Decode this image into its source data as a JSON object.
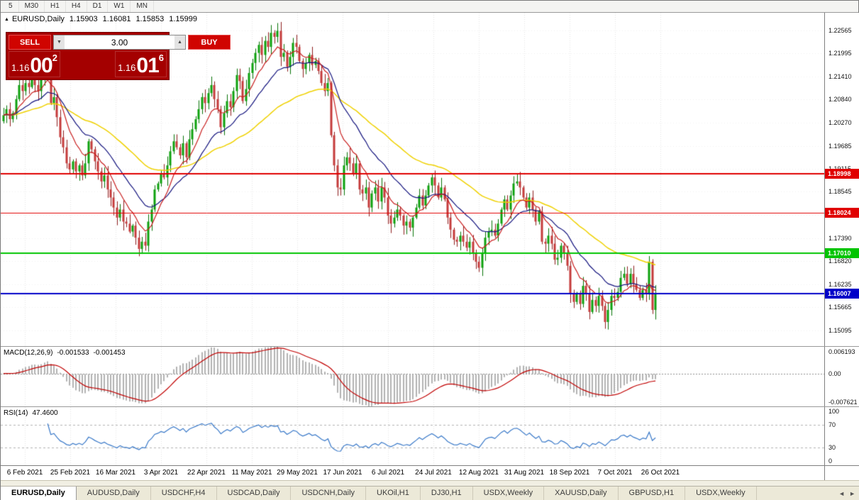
{
  "toolbar": {
    "timeframes": [
      "5",
      "M30",
      "H1",
      "H4",
      "D1",
      "W1",
      "MN"
    ]
  },
  "symbol_line": {
    "symbol": "EURUSD,Daily",
    "open": "1.15903",
    "high": "1.16081",
    "low": "1.15853",
    "close": "1.15999"
  },
  "trade": {
    "sell_label": "SELL",
    "buy_label": "BUY",
    "volume": "3.00",
    "sell_price": {
      "prefix": "1.16",
      "big": "00",
      "sup": "2"
    },
    "buy_price": {
      "prefix": "1.16",
      "big": "01",
      "sup": "6"
    }
  },
  "icons": {
    "symbol_marker": "▲",
    "spinner_up": "▲",
    "spinner_down": "▼",
    "tab_scroll_left": "◄",
    "tab_scroll_right": "►"
  },
  "macd": {
    "name": "MACD(12,26,9)",
    "value_main": "-0.001533",
    "value_signal": "-0.001453",
    "axis": [
      "0.006193",
      "0.00",
      "-0.007621"
    ]
  },
  "rsi": {
    "name": "RSI(14)",
    "value": "47.4600",
    "axis": [
      "100",
      "70",
      "30",
      "0"
    ]
  },
  "tabs": {
    "active_index": 0,
    "items": [
      "EURUSD,Daily",
      "AUDUSD,Daily",
      "USDCHF,H4",
      "USDCAD,Daily",
      "USDCNH,Daily",
      "UKOil,H1",
      "DJ30,H1",
      "USDX,Weekly",
      "XAUUSD,Daily",
      "GBPUSD,H1",
      "USDX,Weekly"
    ]
  },
  "chart_data": {
    "type": "candlestick",
    "title": "EURUSD,Daily",
    "ylim": [
      1.147,
      1.23
    ],
    "first_open": 1.203,
    "closes": [
      1.2045,
      1.206,
      1.2035,
      1.205,
      1.2085,
      1.212,
      1.2105,
      1.2125,
      1.2115,
      1.214,
      1.212,
      1.2105,
      1.2135,
      1.217,
      1.2175,
      1.2075,
      1.209,
      1.204,
      1.199,
      1.1965,
      1.1925,
      1.191,
      1.193,
      1.1905,
      1.192,
      1.1895,
      1.1925,
      1.198,
      1.196,
      1.193,
      1.1905,
      1.188,
      1.1895,
      1.186,
      1.184,
      1.1815,
      1.179,
      1.181,
      1.178,
      1.1775,
      1.1755,
      1.177,
      1.174,
      1.1712,
      1.173,
      1.172,
      1.178,
      1.181,
      1.186,
      1.1875,
      1.19,
      1.189,
      1.192,
      1.1955,
      1.198,
      1.1965,
      1.1945,
      1.1975,
      1.194,
      1.1985,
      1.201,
      1.2035,
      1.206,
      1.209,
      1.2075,
      1.21,
      1.212,
      1.2085,
      1.206,
      1.2015,
      1.205,
      1.208,
      1.2065,
      1.2105,
      1.2145,
      1.213,
      1.208,
      1.211,
      1.215,
      1.2175,
      1.22,
      1.222,
      1.2195,
      1.223,
      1.2215,
      1.225,
      1.224,
      1.2255,
      1.219,
      1.22,
      1.2165,
      1.219,
      1.2225,
      1.2215,
      1.218,
      1.216,
      1.2175,
      1.2195,
      1.217,
      1.218,
      1.2155,
      1.2125,
      1.2105,
      1.2125,
      1.1995,
      1.192,
      1.1865,
      1.186,
      1.192,
      1.194,
      1.1925,
      1.19,
      1.1925,
      1.186,
      1.185,
      1.1865,
      1.1815,
      1.185,
      1.1865,
      1.183,
      1.1865,
      1.184,
      1.1795,
      1.1775,
      1.179,
      1.181,
      1.1795,
      1.177,
      1.178,
      1.1765,
      1.179,
      1.1815,
      1.1845,
      1.182,
      1.1845,
      1.187,
      1.189,
      1.187,
      1.184,
      1.1865,
      1.1835,
      1.179,
      1.176,
      1.1735,
      1.173,
      1.1745,
      1.173,
      1.1715,
      1.173,
      1.17,
      1.168,
      1.1665,
      1.17,
      1.174,
      1.1755,
      1.176,
      1.1745,
      1.1775,
      1.181,
      1.1835,
      1.181,
      1.1845,
      1.1875,
      1.188,
      1.1865,
      1.184,
      1.1815,
      1.184,
      1.181,
      1.178,
      1.1805,
      1.173,
      1.1725,
      1.1745,
      1.1725,
      1.1685,
      1.169,
      1.172,
      1.17,
      1.167,
      1.16,
      1.158,
      1.16,
      1.1575,
      1.162,
      1.16,
      1.1555,
      1.1585,
      1.157,
      1.1595,
      1.157,
      1.153,
      1.156,
      1.1595,
      1.159,
      1.1605,
      1.164,
      1.165,
      1.1625,
      1.165,
      1.1625,
      1.161,
      1.159,
      1.161,
      1.16,
      1.168,
      1.156,
      1.16
    ],
    "last_ohlc": {
      "open": 1.15903,
      "high": 1.16081,
      "low": 1.15853,
      "close": 1.15999
    },
    "moving_averages": [
      {
        "period": 9,
        "color": "#C81E1E"
      },
      {
        "period": 21,
        "color": "#14147E"
      },
      {
        "period": 55,
        "color": "#EFD100"
      }
    ],
    "horizontal_lines": [
      {
        "value": 1.18998,
        "label": "1.18998",
        "color": "#E00000",
        "width": 2
      },
      {
        "value": 1.18024,
        "label": "1.18024",
        "color": "#E00000",
        "width": 1
      },
      {
        "value": 1.1701,
        "label": "1.17010",
        "color": "#00C400",
        "width": 2
      },
      {
        "value": 1.16007,
        "label": "1.16007",
        "color": "#0000C8",
        "width": 2
      }
    ],
    "price_axis_labels": [
      "1.22565",
      "1.21995",
      "1.21410",
      "1.20840",
      "1.20270",
      "1.19685",
      "1.19115",
      "1.18545",
      "1.17960",
      "1.17390",
      "1.16820",
      "1.16235",
      "1.15665",
      "1.15095"
    ],
    "date_labels": [
      "6 Feb 2021",
      "25 Feb 2021",
      "16 Mar 2021",
      "3 Apr 2021",
      "22 Apr 2021",
      "11 May 2021",
      "29 May 2021",
      "17 Jun 2021",
      "6 Jul 2021",
      "24 Jul 2021",
      "12 Aug 2021",
      "31 Aug 2021",
      "18 Sep 2021",
      "7 Oct 2021",
      "26 Oct 2021"
    ],
    "macd": {
      "fast": 12,
      "slow": 26,
      "signal": 9,
      "range": [
        -0.007621,
        0.006193
      ]
    },
    "rsi": {
      "period": 14,
      "levels": [
        30,
        70
      ],
      "range": [
        0,
        100
      ]
    },
    "layout": {
      "candle_spacing": 4.44,
      "first_x": 4,
      "tick_x0": 34,
      "tick_dx": 64,
      "grid": "vertical-dotted",
      "legend": "none"
    },
    "colors": {
      "bull": "#0EA10E",
      "bull_border": "#067206",
      "bear": "#C53B3B",
      "bear_border": "#8C1D1D",
      "macd_hist": "#B2B2B2",
      "macd_signal": "#C00000",
      "rsi_line": "#3878C8",
      "grid": "#E4E4E4",
      "hgrid": "#EFEFEF"
    }
  }
}
